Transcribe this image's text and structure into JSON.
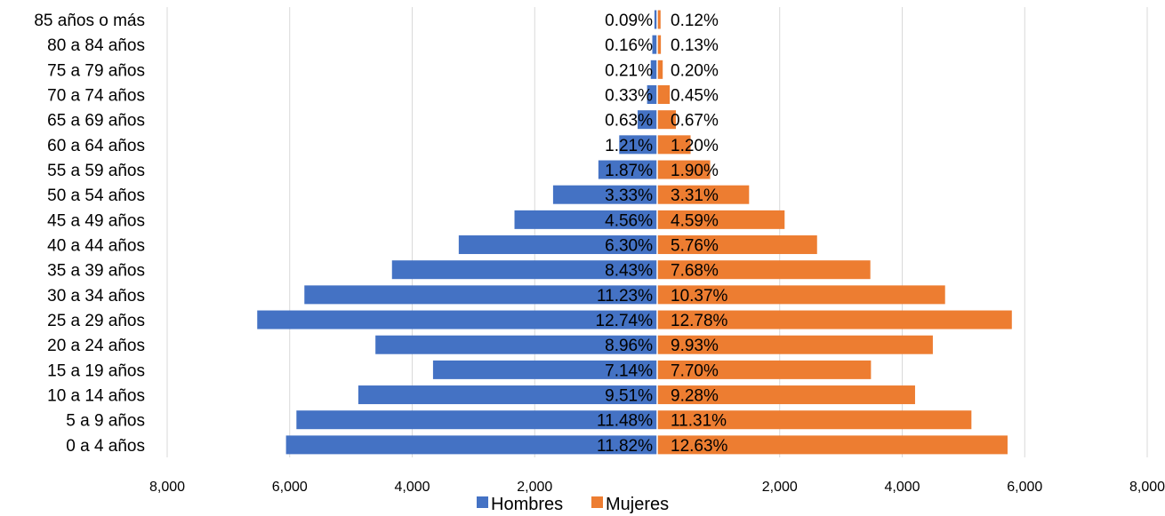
{
  "chart_data": {
    "type": "bar",
    "orientation": "horizontal",
    "layout": "population-pyramid",
    "categories": [
      "85 años o más",
      "80 a 84 años",
      "75 a 79 años",
      "70 a 74 años",
      "65 a 69 años",
      "60 a 64 años",
      "55 a 59 años",
      "50 a 54 años",
      "45 a 49 años",
      "40 a 44 años",
      "35 a 39 años",
      "30 a 34 años",
      "25 a 29 años",
      "20 a 24 años",
      "15 a 19 años",
      "10 a 14 años",
      "5 a 9 años",
      "0 a 4 años"
    ],
    "series": [
      {
        "name": "Hombres",
        "color": "#4472C4",
        "side": "left",
        "values": [
          45,
          80,
          105,
          165,
          320,
          620,
          960,
          1700,
          2330,
          3240,
          4330,
          5760,
          6530,
          4600,
          3660,
          4880,
          5890,
          6060
        ],
        "labels": [
          "0.09%",
          "0.16%",
          "0.21%",
          "0.33%",
          "0.63%",
          "1.21%",
          "1.87%",
          "3.33%",
          "4.56%",
          "6.30%",
          "8.43%",
          "11.23%",
          "12.74%",
          "8.96%",
          "7.14%",
          "9.51%",
          "11.48%",
          "11.82%"
        ]
      },
      {
        "name": "Mujeres",
        "color": "#ED7D31",
        "side": "right",
        "values": [
          55,
          60,
          90,
          205,
          305,
          545,
          865,
          1500,
          2080,
          2610,
          3480,
          4700,
          5790,
          4500,
          3490,
          4210,
          5130,
          5720
        ],
        "labels": [
          "0.12%",
          "0.13%",
          "0.20%",
          "0.45%",
          "0.67%",
          "1.20%",
          "1.90%",
          "3.31%",
          "4.59%",
          "5.76%",
          "7.68%",
          "10.37%",
          "12.78%",
          "9.93%",
          "7.70%",
          "9.28%",
          "11.31%",
          "12.63%"
        ]
      }
    ],
    "xlim": [
      -8000,
      8000
    ],
    "left_ticks": [
      "8,000",
      "6,000",
      "4,000",
      "2,000"
    ],
    "right_ticks": [
      "2,000",
      "4,000",
      "6,000",
      "8,000"
    ],
    "legend": {
      "position": "bottom",
      "items": [
        "Hombres",
        "Mujeres"
      ]
    },
    "grid": true
  }
}
